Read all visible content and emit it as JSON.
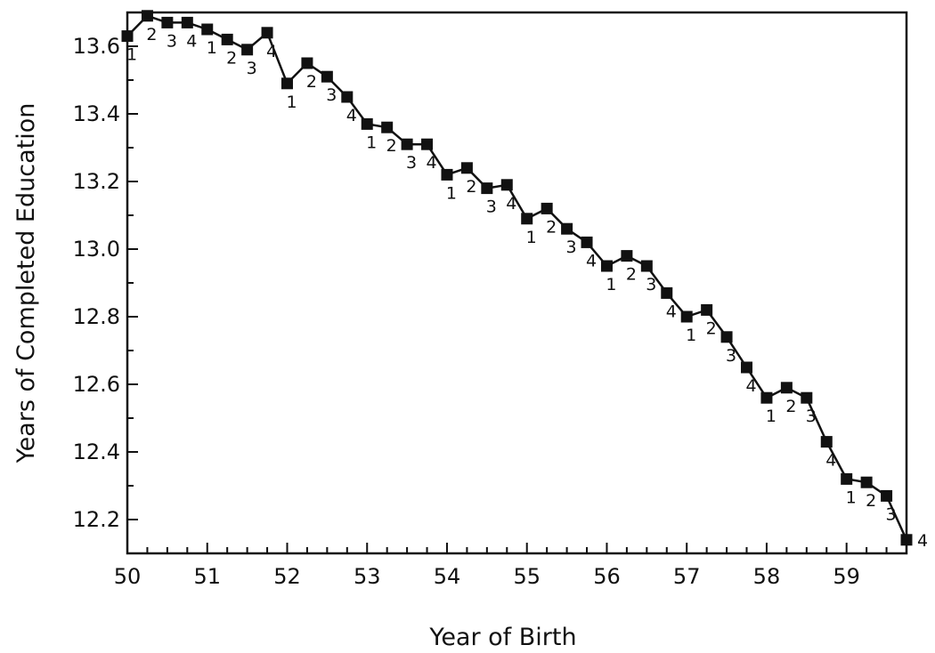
{
  "chart_data": {
    "type": "line",
    "title": "",
    "xlabel": "Year of Birth",
    "ylabel": "Years of Completed Education",
    "xlim": [
      50,
      59.75
    ],
    "ylim": [
      12.1,
      13.7
    ],
    "x_ticks": [
      "50",
      "51",
      "52",
      "53",
      "54",
      "55",
      "56",
      "57",
      "58",
      "59"
    ],
    "y_ticks": [
      "12.2",
      "12.4",
      "12.6",
      "12.8",
      "13.0",
      "13.2",
      "13.4",
      "13.6"
    ],
    "y_tick_values": [
      12.2,
      12.4,
      12.6,
      12.8,
      13.0,
      13.2,
      13.4,
      13.6
    ],
    "grid": false,
    "marker": "filled-square",
    "series": [
      {
        "x": [
          50.0,
          50.25,
          50.5,
          50.75,
          51.0,
          51.25,
          51.5,
          51.75,
          52.0,
          52.25,
          52.5,
          52.75,
          53.0,
          53.25,
          53.5,
          53.75,
          54.0,
          54.25,
          54.5,
          54.75,
          55.0,
          55.25,
          55.5,
          55.75,
          56.0,
          56.25,
          56.5,
          56.75,
          57.0,
          57.25,
          57.5,
          57.75,
          58.0,
          58.25,
          58.5,
          58.75,
          59.0,
          59.25,
          59.5,
          59.75
        ],
        "values": [
          13.63,
          13.69,
          13.67,
          13.67,
          13.65,
          13.62,
          13.59,
          13.64,
          13.49,
          13.55,
          13.51,
          13.45,
          13.37,
          13.36,
          13.31,
          13.31,
          13.22,
          13.24,
          13.18,
          13.19,
          13.09,
          13.12,
          13.06,
          13.02,
          12.95,
          12.98,
          12.95,
          12.87,
          12.8,
          12.82,
          12.74,
          12.65,
          12.56,
          12.59,
          12.56,
          12.43,
          12.32,
          12.31,
          12.27,
          12.14
        ],
        "point_labels": [
          "1",
          "2",
          "3",
          "4",
          "1",
          "2",
          "3",
          "4",
          "1",
          "2",
          "3",
          "4",
          "1",
          "2",
          "3",
          "4",
          "1",
          "2",
          "3",
          "4",
          "1",
          "2",
          "3",
          "4",
          "1",
          "2",
          "3",
          "4",
          "1",
          "2",
          "3",
          "4",
          "1",
          "2",
          "3",
          "4",
          "1",
          "2",
          "3",
          "4"
        ]
      }
    ]
  }
}
